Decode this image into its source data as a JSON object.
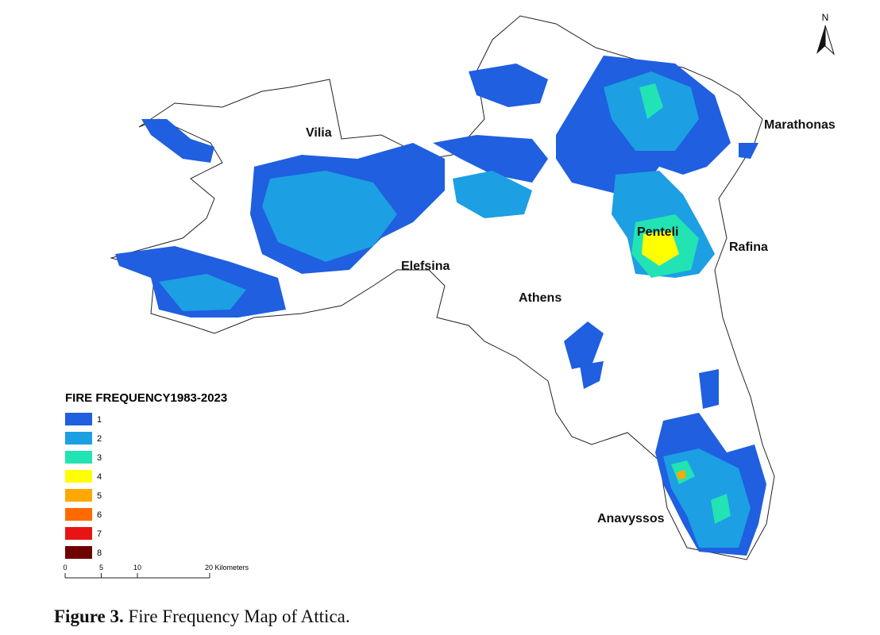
{
  "map": {
    "places": [
      "Vilia",
      "Marathonas",
      "Penteli",
      "Rafina",
      "Elefsina",
      "Athens",
      "Anavyssos"
    ],
    "north_label": "N"
  },
  "legend": {
    "title": "FIRE FREQUENCY1983-2023",
    "classes": [
      {
        "label": "1",
        "color": "#1f5fe0"
      },
      {
        "label": "2",
        "color": "#1c9fe3"
      },
      {
        "label": "3",
        "color": "#22e3b4"
      },
      {
        "label": "4",
        "color": "#ffff00"
      },
      {
        "label": "5",
        "color": "#ffa800"
      },
      {
        "label": "6",
        "color": "#ff6a00"
      },
      {
        "label": "7",
        "color": "#e81414"
      },
      {
        "label": "8",
        "color": "#6e0000"
      }
    ]
  },
  "scale_bar": {
    "ticks": [
      {
        "value": 0,
        "label": "0"
      },
      {
        "value": 5,
        "label": "5"
      },
      {
        "value": 10,
        "label": "10"
      },
      {
        "value": 20,
        "label": "20 Kilometers"
      }
    ]
  },
  "caption": {
    "label": "Figure 3.",
    "text": "Fire Frequency Map of Attica."
  }
}
